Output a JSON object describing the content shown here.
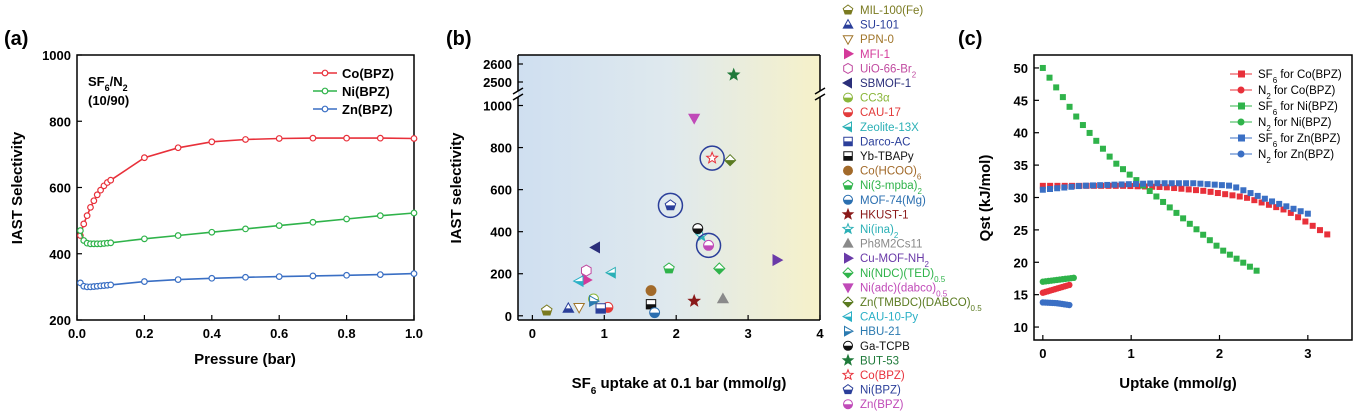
{
  "chart_data": [
    {
      "panel": "(a)",
      "type": "line",
      "xlabel": "Pressure (bar)",
      "ylabel": "IAST Selectivity",
      "xlim": [
        0,
        1.0
      ],
      "ylim": [
        200,
        1000
      ],
      "xticks": [
        0.0,
        0.2,
        0.4,
        0.6,
        0.8,
        1.0
      ],
      "xtick_labels": [
        "0.0",
        "0.2",
        "0.4",
        "0.6",
        "0.8",
        "1.0"
      ],
      "yticks": [
        200,
        400,
        600,
        800,
        1000
      ],
      "annotation_line1": "SF6/N2",
      "annotation_line2": "(10/90)",
      "legend_position": "top-right",
      "series": [
        {
          "name": "Co(BPZ)",
          "color": "#e8303a",
          "x": [
            0.01,
            0.02,
            0.03,
            0.04,
            0.05,
            0.06,
            0.07,
            0.08,
            0.09,
            0.1,
            0.2,
            0.3,
            0.4,
            0.5,
            0.6,
            0.7,
            0.8,
            0.9,
            1.0
          ],
          "y": [
            455,
            490,
            515,
            540,
            560,
            578,
            592,
            605,
            615,
            622,
            690,
            720,
            738,
            745,
            748,
            749,
            749,
            749,
            748
          ]
        },
        {
          "name": "Ni(BPZ)",
          "color": "#2fb34a",
          "x": [
            0.01,
            0.02,
            0.03,
            0.04,
            0.05,
            0.06,
            0.07,
            0.08,
            0.09,
            0.1,
            0.2,
            0.3,
            0.4,
            0.5,
            0.6,
            0.7,
            0.8,
            0.9,
            1.0
          ],
          "y": [
            470,
            440,
            432,
            430,
            430,
            430,
            430,
            431,
            432,
            433,
            445,
            455,
            465,
            475,
            485,
            495,
            505,
            515,
            523
          ]
        },
        {
          "name": "Zn(BPZ)",
          "color": "#3a6fc4",
          "x": [
            0.01,
            0.02,
            0.03,
            0.04,
            0.05,
            0.06,
            0.07,
            0.08,
            0.09,
            0.1,
            0.2,
            0.3,
            0.4,
            0.5,
            0.6,
            0.7,
            0.8,
            0.9,
            1.0
          ],
          "y": [
            312,
            302,
            300,
            300,
            301,
            302,
            303,
            304,
            305,
            306,
            316,
            322,
            326,
            329,
            331,
            333,
            335,
            337,
            340
          ]
        }
      ]
    },
    {
      "panel": "(b)",
      "type": "scatter",
      "xlabel": "SF6 uptake at 0.1 bar (mmol/g)",
      "ylabel": "IAST selectivity",
      "xlim": [
        -0.2,
        4
      ],
      "ylim_lower": [
        -20,
        1050
      ],
      "ylim_upper": [
        2450,
        2650
      ],
      "xticks": [
        0,
        1,
        2,
        3,
        4
      ],
      "yticks_lower": [
        0,
        200,
        400,
        600,
        800,
        1000
      ],
      "yticks_upper": [
        2500,
        2600
      ],
      "grid": false,
      "legend_position": "right",
      "circled": [
        "Ni(BPZ)",
        "Co(BPZ)",
        "Zn(BPZ)"
      ],
      "points": [
        {
          "name": "MIL-100(Fe)",
          "x": 0.2,
          "y": 25,
          "marker": "pentagon-half",
          "color": "#7a7a20"
        },
        {
          "name": "SU-101",
          "x": 0.5,
          "y": 35,
          "marker": "triangle-up-half",
          "color": "#2b3f9a"
        },
        {
          "name": "PPN-0",
          "x": 0.65,
          "y": 40,
          "marker": "triangle-down-open",
          "color": "#a0752a"
        },
        {
          "name": "MFI-1",
          "x": 0.75,
          "y": 170,
          "marker": "triangle-right",
          "color": "#d43a9a"
        },
        {
          "name": "UiO-66-Br2",
          "x": 0.75,
          "y": 215,
          "marker": "hexagon-open",
          "color": "#c04aa0"
        },
        {
          "name": "SBMOF-1",
          "x": 0.88,
          "y": 325,
          "marker": "triangle-left",
          "color": "#2b2f7a"
        },
        {
          "name": "CC3α",
          "x": 0.85,
          "y": 80,
          "marker": "circle-half",
          "color": "#8ab63a"
        },
        {
          "name": "CAU-17",
          "x": 1.05,
          "y": 40,
          "marker": "circle-half",
          "color": "#e23a3a"
        },
        {
          "name": "Zeolite-13X",
          "x": 1.1,
          "y": 205,
          "marker": "triangle-left-half",
          "color": "#2bb0b6"
        },
        {
          "name": "Darco-AC",
          "x": 0.95,
          "y": 35,
          "marker": "square-half",
          "color": "#2b3f9a"
        },
        {
          "name": "Yb-TBAPy",
          "x": 1.65,
          "y": 55,
          "marker": "square-half",
          "color": "#111111"
        },
        {
          "name": "Co(HCOO)6",
          "x": 1.65,
          "y": 120,
          "marker": "circle",
          "color": "#a26a2a"
        },
        {
          "name": "Ni(3-mpba)2",
          "x": 1.9,
          "y": 225,
          "marker": "pentagon-half",
          "color": "#2fb34a"
        },
        {
          "name": "MOF-74(Mg)",
          "x": 1.7,
          "y": 15,
          "marker": "circle-half",
          "color": "#2b6fb0"
        },
        {
          "name": "HKUST-1",
          "x": 2.25,
          "y": 70,
          "marker": "star",
          "color": "#8a1a1a"
        },
        {
          "name": "Ni(ina)2",
          "x": 2.35,
          "y": 380,
          "marker": "star-half",
          "color": "#2bb0b6"
        },
        {
          "name": "Ph8M2Cs11",
          "x": 2.65,
          "y": 80,
          "marker": "triangle-up",
          "color": "#8a8a8a"
        },
        {
          "name": "Cu-MOF-NH2",
          "x": 3.4,
          "y": 265,
          "marker": "triangle-right",
          "color": "#6a3aa8"
        },
        {
          "name": "Ni(NDC)(TED)0.5",
          "x": 2.6,
          "y": 225,
          "marker": "diamond-half",
          "color": "#2fb34a"
        },
        {
          "name": "Ni(adc)(dabco)0.5",
          "x": 2.25,
          "y": 940,
          "marker": "triangle-down",
          "color": "#c04ab8"
        },
        {
          "name": "Zn(TMBDC)(DABCO)0.5",
          "x": 2.75,
          "y": 740,
          "marker": "diamond-half",
          "color": "#5a7a20"
        },
        {
          "name": "CAU-10-Py",
          "x": 0.65,
          "y": 165,
          "marker": "triangle-left-half",
          "color": "#2bb0c6"
        },
        {
          "name": "HBU-21",
          "x": 0.85,
          "y": 70,
          "marker": "triangle-right-half",
          "color": "#2b7ab0"
        },
        {
          "name": "Ga-TCPB",
          "x": 2.3,
          "y": 415,
          "marker": "circle-half",
          "color": "#111111"
        },
        {
          "name": "BUT-53",
          "x": 2.8,
          "y": 2540,
          "marker": "star",
          "color": "#1f7a3a"
        },
        {
          "name": "Co(BPZ)",
          "x": 2.5,
          "y": 750,
          "marker": "star-open",
          "color": "#e8303a"
        },
        {
          "name": "Ni(BPZ)",
          "x": 1.92,
          "y": 525,
          "marker": "pentagon-half",
          "color": "#2b3f9a"
        },
        {
          "name": "Zn(BPZ)",
          "x": 2.45,
          "y": 335,
          "marker": "circle-half",
          "color": "#c04ab8"
        }
      ],
      "legend": [
        {
          "label": "MIL-100(Fe)",
          "sub": "",
          "color": "#7a7a20",
          "marker": "pentagon-half"
        },
        {
          "label": "SU-101",
          "sub": "",
          "color": "#2b3f9a",
          "marker": "triangle-up-half"
        },
        {
          "label": "PPN-0",
          "sub": "",
          "color": "#a0752a",
          "marker": "triangle-down-open"
        },
        {
          "label": "MFI-1",
          "sub": "",
          "color": "#d43a9a",
          "marker": "triangle-right"
        },
        {
          "label": "UiO-66-Br",
          "sub": "2",
          "color": "#c04aa0",
          "marker": "hexagon-open"
        },
        {
          "label": "SBMOF-1",
          "sub": "",
          "color": "#2b2f7a",
          "marker": "triangle-left"
        },
        {
          "label": "CC3α",
          "sub": "",
          "color": "#8ab63a",
          "marker": "circle-half"
        },
        {
          "label": "CAU-17",
          "sub": "",
          "color": "#e23a3a",
          "marker": "circle-half"
        },
        {
          "label": "Zeolite-13X",
          "sub": "",
          "color": "#2bb0b6",
          "marker": "triangle-left-half"
        },
        {
          "label": "Darco-AC",
          "sub": "",
          "color": "#2b3f9a",
          "marker": "square-half"
        },
        {
          "label": "Yb-TBAPy",
          "sub": "",
          "color": "#111111",
          "marker": "square-half"
        },
        {
          "label": "Co(HCOO)",
          "sub": "6",
          "color": "#a26a2a",
          "marker": "circle"
        },
        {
          "label": "Ni(3-mpba)",
          "sub": "2",
          "color": "#2fb34a",
          "marker": "pentagon-half"
        },
        {
          "label": "MOF-74(Mg)",
          "sub": "",
          "color": "#2b6fb0",
          "marker": "circle-half"
        },
        {
          "label": "HKUST-1",
          "sub": "",
          "color": "#8a1a1a",
          "marker": "star"
        },
        {
          "label": "Ni(ina)",
          "sub": "2",
          "color": "#2bb0b6",
          "marker": "star-half"
        },
        {
          "label": "Ph8M2Cs11",
          "sub": "",
          "color": "#8a8a8a",
          "marker": "triangle-up"
        },
        {
          "label": "Cu-MOF-NH",
          "sub": "2",
          "color": "#6a3aa8",
          "marker": "triangle-right"
        },
        {
          "label": "Ni(NDC)(TED)",
          "sub": "0.5",
          "color": "#2fb34a",
          "marker": "diamond-half"
        },
        {
          "label": "Ni(adc)(dabco)",
          "sub": "0.5",
          "color": "#c04ab8",
          "marker": "triangle-down"
        },
        {
          "label": "Zn(TMBDC)(DABCO)",
          "sub": "0.5",
          "color": "#5a7a20",
          "marker": "diamond-half"
        },
        {
          "label": "CAU-10-Py",
          "sub": "",
          "color": "#2bb0c6",
          "marker": "triangle-left-half"
        },
        {
          "label": "HBU-21",
          "sub": "",
          "color": "#2b7ab0",
          "marker": "triangle-right-half"
        },
        {
          "label": "Ga-TCPB",
          "sub": "",
          "color": "#111111",
          "marker": "circle-half"
        },
        {
          "label": "BUT-53",
          "sub": "",
          "color": "#1f7a3a",
          "marker": "star"
        },
        {
          "label": "Co(BPZ)",
          "sub": "",
          "color": "#e8303a",
          "marker": "star-open"
        },
        {
          "label": "Ni(BPZ)",
          "sub": "",
          "color": "#2b3f9a",
          "marker": "pentagon-half"
        },
        {
          "label": "Zn(BPZ)",
          "sub": "",
          "color": "#c04ab8",
          "marker": "circle-half"
        }
      ]
    },
    {
      "panel": "(c)",
      "type": "scatter",
      "xlabel": "Uptake (mmol/g)",
      "ylabel": "Qst (kJ/mol)",
      "xlim": [
        -0.1,
        3.5
      ],
      "ylim": [
        8,
        52
      ],
      "xticks": [
        0,
        1,
        2,
        3
      ],
      "yticks": [
        10,
        15,
        20,
        25,
        30,
        35,
        40,
        45,
        50
      ],
      "legend_position": "top-right",
      "series": [
        {
          "name": "SF6 for Co(BPZ)",
          "marker": "square",
          "color": "#e8303a",
          "x0": 0.0,
          "x1": 3.22,
          "y": [
            31.8,
            31.8,
            31.8,
            31.6,
            31.0,
            30.0,
            28.0,
            24.3
          ],
          "n": 40
        },
        {
          "name": "N2 for Co(BPZ)",
          "marker": "circle",
          "color": "#e8303a",
          "x0": 0.0,
          "x1": 0.3,
          "y": [
            15.3,
            16.5
          ],
          "n": 12
        },
        {
          "name": "SF6 for Ni(BPZ)",
          "marker": "square",
          "color": "#2fb34a",
          "x0": 0.0,
          "x1": 2.42,
          "y": [
            50.0,
            42.0,
            35.5,
            31.0,
            26.5,
            22.0,
            18.7
          ],
          "n": 33
        },
        {
          "name": "N2 for Ni(BPZ)",
          "marker": "circle",
          "color": "#2fb34a",
          "x0": 0.0,
          "x1": 0.35,
          "y": [
            17.0,
            17.6
          ],
          "n": 12
        },
        {
          "name": "SF6 for Zn(BPZ)",
          "marker": "square",
          "color": "#3a6fc4",
          "x0": 0.0,
          "x1": 3.0,
          "y": [
            31.2,
            31.8,
            32.0,
            32.2,
            32.2,
            31.8,
            29.5,
            27.5
          ],
          "n": 38
        },
        {
          "name": "N2 for Zn(BPZ)",
          "marker": "circle",
          "color": "#3a6fc4",
          "x0": 0.0,
          "x1": 0.3,
          "y": [
            13.8,
            13.7,
            13.4
          ],
          "n": 12
        }
      ],
      "legend": [
        {
          "pre": "SF",
          "sub": "6",
          "post": " for Co(BPZ)",
          "marker": "square",
          "color": "#e8303a"
        },
        {
          "pre": "N",
          "sub": "2",
          "post": " for Co(BPZ)",
          "marker": "circle",
          "color": "#e8303a"
        },
        {
          "pre": "SF",
          "sub": "6",
          "post": " for Ni(BPZ)",
          "marker": "square",
          "color": "#2fb34a"
        },
        {
          "pre": "N",
          "sub": "2",
          "post": " for Ni(BPZ)",
          "marker": "circle",
          "color": "#2fb34a"
        },
        {
          "pre": "SF",
          "sub": "6",
          "post": " for Zn(BPZ)",
          "marker": "square",
          "color": "#3a6fc4"
        },
        {
          "pre": "N",
          "sub": "2",
          "post": " for Zn(BPZ)",
          "marker": "circle",
          "color": "#3a6fc4"
        }
      ]
    }
  ],
  "panel_labels": [
    "(a)",
    "(b)",
    "(c)"
  ]
}
